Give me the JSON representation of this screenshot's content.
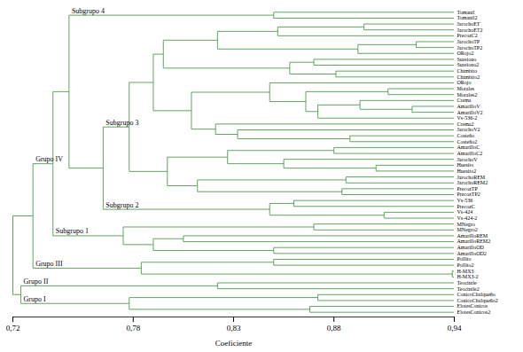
{
  "chart_data": {
    "type": "dendrogram",
    "x_label": "Coeficiente",
    "xlim": [
      0.72,
      0.94
    ],
    "xticks": [
      {
        "value": 0.72,
        "label": "0,72"
      },
      {
        "value": 0.78,
        "label": "0,78"
      },
      {
        "value": 0.83,
        "label": "0,83"
      },
      {
        "value": 0.88,
        "label": "0,88"
      },
      {
        "value": 0.94,
        "label": "0,94"
      }
    ],
    "color": "#4f9a4f",
    "tree": {
      "height": 0.72,
      "children": [
        {
          "height": 0.73,
          "children": [
            {
              "height": 0.74,
              "label": "Grupo IV",
              "children": [
                {
                  "height": 0.748,
                  "children": [
                    {
                      "height": 0.85,
                      "label": "Subgrupo 4",
                      "children": [
                        {
                          "name": "Tomanil"
                        },
                        {
                          "name": "Tomanil2"
                        }
                      ]
                    },
                    {
                      "height": 0.765,
                      "children": [
                        {
                          "height": 0.778,
                          "label": "Subgrupo 3",
                          "children": [
                            {
                              "height": 0.79,
                              "children": [
                                {
                                  "height": 0.795,
                                  "children": [
                                    {
                                      "height": 0.822,
                                      "children": [
                                        {
                                          "height": 0.852,
                                          "children": [
                                            {
                                              "height": 0.895,
                                              "children": [
                                                {
                                                  "name": "JarochoET"
                                                },
                                                {
                                                  "name": "JarochoET2"
                                                }
                                              ]
                                            },
                                            {
                                              "name": "PrecozC2"
                                            }
                                          ]
                                        },
                                        {
                                          "height": 0.892,
                                          "children": [
                                            {
                                              "height": 0.921,
                                              "children": [
                                                {
                                                  "name": "JarochoTP"
                                                },
                                                {
                                                  "name": "JarochoTP2"
                                                }
                                              ]
                                            },
                                            {
                                              "name": "ORojo2"
                                            }
                                          ]
                                        }
                                      ]
                                    },
                                    {
                                      "height": 0.858,
                                      "children": [
                                        {
                                          "height": 0.87,
                                          "children": [
                                            {
                                              "name": "Sureiono"
                                            },
                                            {
                                              "name": "Sureiono2"
                                            }
                                          ]
                                        },
                                        {
                                          "height": 0.881,
                                          "children": [
                                            {
                                              "name": "Chimbito"
                                            },
                                            {
                                              "name": "Chimbito2"
                                            }
                                          ]
                                        }
                                      ]
                                    }
                                  ]
                                },
                                {
                                  "height": 0.809,
                                  "children": [
                                    {
                                      "height": 0.848,
                                      "children": [
                                        {
                                          "name": "ORojo"
                                        },
                                        {
                                          "height": 0.866,
                                          "children": [
                                            {
                                              "height": 0.907,
                                              "children": [
                                                {
                                                  "name": "Morales"
                                                },
                                                {
                                                  "name": "Morales2"
                                                }
                                              ]
                                            },
                                            {
                                              "height": 0.872,
                                              "children": [
                                                {
                                                  "height": 0.893,
                                                  "children": [
                                                    {
                                                      "name": "Crema"
                                                    },
                                                    {
                                                      "height": 0.919,
                                                      "children": [
                                                        {
                                                          "name": "AmarilloV"
                                                        },
                                                        {
                                                          "name": "AmarilloV2"
                                                        }
                                                      ]
                                                    }
                                                  ]
                                                },
                                                {
                                                  "name": "Vs-536-2"
                                                }
                                              ]
                                            }
                                          ]
                                        }
                                      ]
                                    },
                                    {
                                      "height": 0.821,
                                      "children": [
                                        {
                                          "name": "Crema2"
                                        },
                                        {
                                          "height": 0.832,
                                          "children": [
                                            {
                                              "name": "JarochoV2"
                                            },
                                            {
                                              "height": 0.888,
                                              "children": [
                                                {
                                                  "name": "Costeño"
                                                },
                                                {
                                                  "name": "Costeño2"
                                                }
                                              ]
                                            }
                                          ]
                                        }
                                      ]
                                    }
                                  ]
                                }
                              ]
                            },
                            {
                              "height": 0.797,
                              "children": [
                                {
                                  "height": 0.827,
                                  "children": [
                                    {
                                      "height": 0.88,
                                      "children": [
                                        {
                                          "name": "AmarilloC"
                                        },
                                        {
                                          "name": "AmarilloC2"
                                        }
                                      ]
                                    },
                                    {
                                      "height": 0.855,
                                      "children": [
                                        {
                                          "name": "JarochoV"
                                        },
                                        {
                                          "height": 0.901,
                                          "children": [
                                            {
                                              "name": "Huesito"
                                            },
                                            {
                                              "name": "Huesito2"
                                            }
                                          ]
                                        }
                                      ]
                                    }
                                  ]
                                },
                                {
                                  "height": 0.812,
                                  "children": [
                                    {
                                      "height": 0.886,
                                      "children": [
                                        {
                                          "name": "JarochoREM"
                                        },
                                        {
                                          "name": "JarochoREM2"
                                        }
                                      ]
                                    },
                                    {
                                      "height": 0.884,
                                      "children": [
                                        {
                                          "name": "PrecozTP"
                                        },
                                        {
                                          "name": "PrecozTP2"
                                        }
                                      ]
                                    }
                                  ]
                                }
                              ]
                            }
                          ]
                        },
                        {
                          "height": 0.848,
                          "label": "Subgrupo 2",
                          "children": [
                            {
                              "height": 0.86,
                              "children": [
                                {
                                  "name": "Vs-536"
                                },
                                {
                                  "name": "PrecozC"
                                }
                              ]
                            },
                            {
                              "height": 0.905,
                              "children": [
                                {
                                  "name": "Vs-424"
                                },
                                {
                                  "name": "Vs-424-2"
                                }
                              ]
                            }
                          ]
                        }
                      ]
                    }
                  ]
                },
                {
                  "height": 0.775,
                  "label": "Subgrupo 1",
                  "children": [
                    {
                      "height": 0.87,
                      "children": [
                        {
                          "name": "MNegro"
                        },
                        {
                          "name": "MNegro2"
                        }
                      ]
                    },
                    {
                      "height": 0.79,
                      "children": [
                        {
                          "height": 0.805,
                          "children": [
                            {
                              "name": "AmarilloREM"
                            },
                            {
                              "name": "AmarilloREM2"
                            }
                          ]
                        },
                        {
                          "height": 0.85,
                          "children": [
                            {
                              "name": "AmarilloOD"
                            },
                            {
                              "name": "AmarilloOD2"
                            }
                          ]
                        }
                      ]
                    }
                  ]
                }
              ]
            },
            {
              "height": 0.784,
              "label": "Grupo III",
              "children": [
                {
                  "height": 0.85,
                  "children": [
                    {
                      "name": "Pollito"
                    },
                    {
                      "name": "Pollito2"
                    }
                  ]
                },
                {
                  "height": 0.939,
                  "children": [
                    {
                      "name": "H-MX3"
                    },
                    {
                      "name": "H-MX3-2"
                    }
                  ]
                }
              ]
            }
          ]
        },
        {
          "height": 0.724,
          "children": [
            {
              "height": 0.822,
              "label": "Grupo II",
              "children": [
                {
                  "name": "Teocintle"
                },
                {
                  "name": "Teocintle2"
                }
              ]
            },
            {
              "height": 0.778,
              "label": "Grupo I",
              "children": [
                {
                  "height": 0.872,
                  "children": [
                    {
                      "name": "ConicoChalqueño"
                    },
                    {
                      "name": "ConicoChalqueño2"
                    }
                  ]
                },
                {
                  "height": 0.868,
                  "children": [
                    {
                      "name": "ElotesConicos"
                    },
                    {
                      "name": "ElotesConicos2"
                    }
                  ]
                }
              ]
            }
          ]
        }
      ]
    }
  }
}
